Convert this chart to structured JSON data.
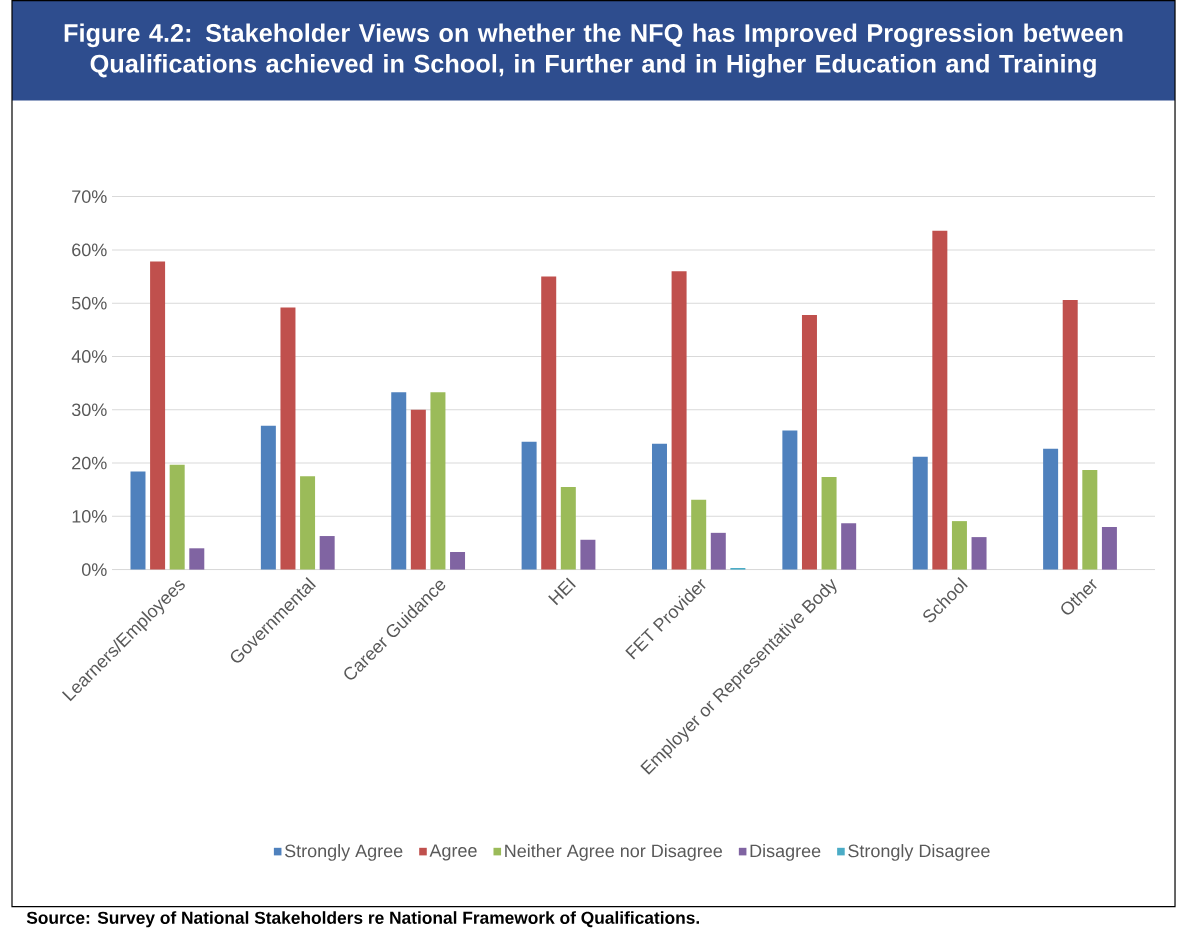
{
  "chart_data": {
    "type": "bar",
    "title": "Figure 4.2: Stakeholder Views on whether the NFQ has Improved Progression between Qualifications achieved in School, in Further and in Higher Education and Training",
    "categories": [
      "Learners/Employees",
      "Governmental",
      "Career Guidance",
      "HEI",
      "FET Provider",
      "Employer or Representative Body",
      "School",
      "Other"
    ],
    "series": [
      {
        "name": "Strongly Agree",
        "color": "#4f81bd",
        "values": [
          18.4,
          27.0,
          33.3,
          24.0,
          23.6,
          26.1,
          21.2,
          22.7
        ]
      },
      {
        "name": "Agree",
        "color": "#c0504d",
        "values": [
          57.8,
          49.2,
          30.0,
          55.0,
          56.0,
          47.8,
          63.6,
          50.6
        ]
      },
      {
        "name": "Neither Agree nor Disagree",
        "color": "#9bbb59",
        "values": [
          19.7,
          17.5,
          33.3,
          15.5,
          13.1,
          17.4,
          9.1,
          18.7
        ]
      },
      {
        "name": "Disagree",
        "color": "#8064a2",
        "values": [
          4.0,
          6.3,
          3.3,
          5.6,
          6.9,
          8.7,
          6.1,
          8.0
        ]
      },
      {
        "name": "Strongly Disagree",
        "color": "#4bacc6",
        "values": [
          0,
          0,
          0,
          0,
          0.3,
          0,
          0,
          0
        ]
      }
    ],
    "ylim": [
      0,
      70
    ],
    "yticks": [
      {
        "value": 0,
        "label": "0%"
      },
      {
        "value": 10,
        "label": "10%"
      },
      {
        "value": 20,
        "label": "20%"
      },
      {
        "value": 30,
        "label": "30%"
      },
      {
        "value": 40,
        "label": "40%"
      },
      {
        "value": 50,
        "label": "50%"
      },
      {
        "value": 60,
        "label": "60%"
      },
      {
        "value": 70,
        "label": "70%"
      }
    ],
    "grid": "y",
    "legend": "bottom",
    "annotations": [
      "Source: Survey of National Stakeholders re National Framework of Qualifications."
    ]
  }
}
